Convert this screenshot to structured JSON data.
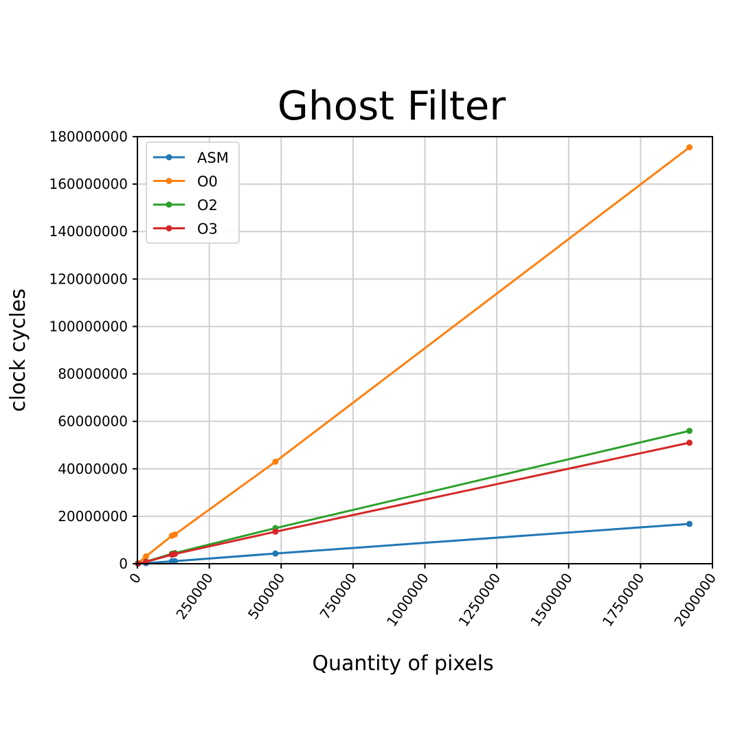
{
  "chart_data": {
    "type": "line",
    "title": "Ghost Filter",
    "xlabel": "Quantity of pixels",
    "ylabel": "clock cycles",
    "xlim": [
      0,
      2000000
    ],
    "ylim": [
      0,
      180000000
    ],
    "xticks": [
      0,
      250000,
      500000,
      750000,
      1000000,
      1250000,
      1500000,
      1750000,
      2000000
    ],
    "yticks": [
      0,
      20000000,
      40000000,
      60000000,
      80000000,
      100000000,
      120000000,
      140000000,
      160000000,
      180000000
    ],
    "grid": true,
    "legend": "top-left",
    "x": [
      2000,
      30000,
      120000,
      130000,
      480000,
      1920000
    ],
    "series": [
      {
        "name": "ASM",
        "color": "#1f77b4",
        "values": [
          20000,
          250000,
          1000000,
          1100000,
          4300000,
          16800000
        ]
      },
      {
        "name": "O0",
        "color": "#ff7f0e",
        "values": [
          200000,
          3100000,
          11800000,
          12300000,
          43000000,
          175500000
        ]
      },
      {
        "name": "O2",
        "color": "#2ca02c",
        "values": [
          60000,
          900000,
          4200000,
          4500000,
          15000000,
          56000000
        ]
      },
      {
        "name": "O3",
        "color": "#d62728",
        "values": [
          50000,
          800000,
          3800000,
          4100000,
          13500000,
          51000000
        ]
      }
    ]
  }
}
